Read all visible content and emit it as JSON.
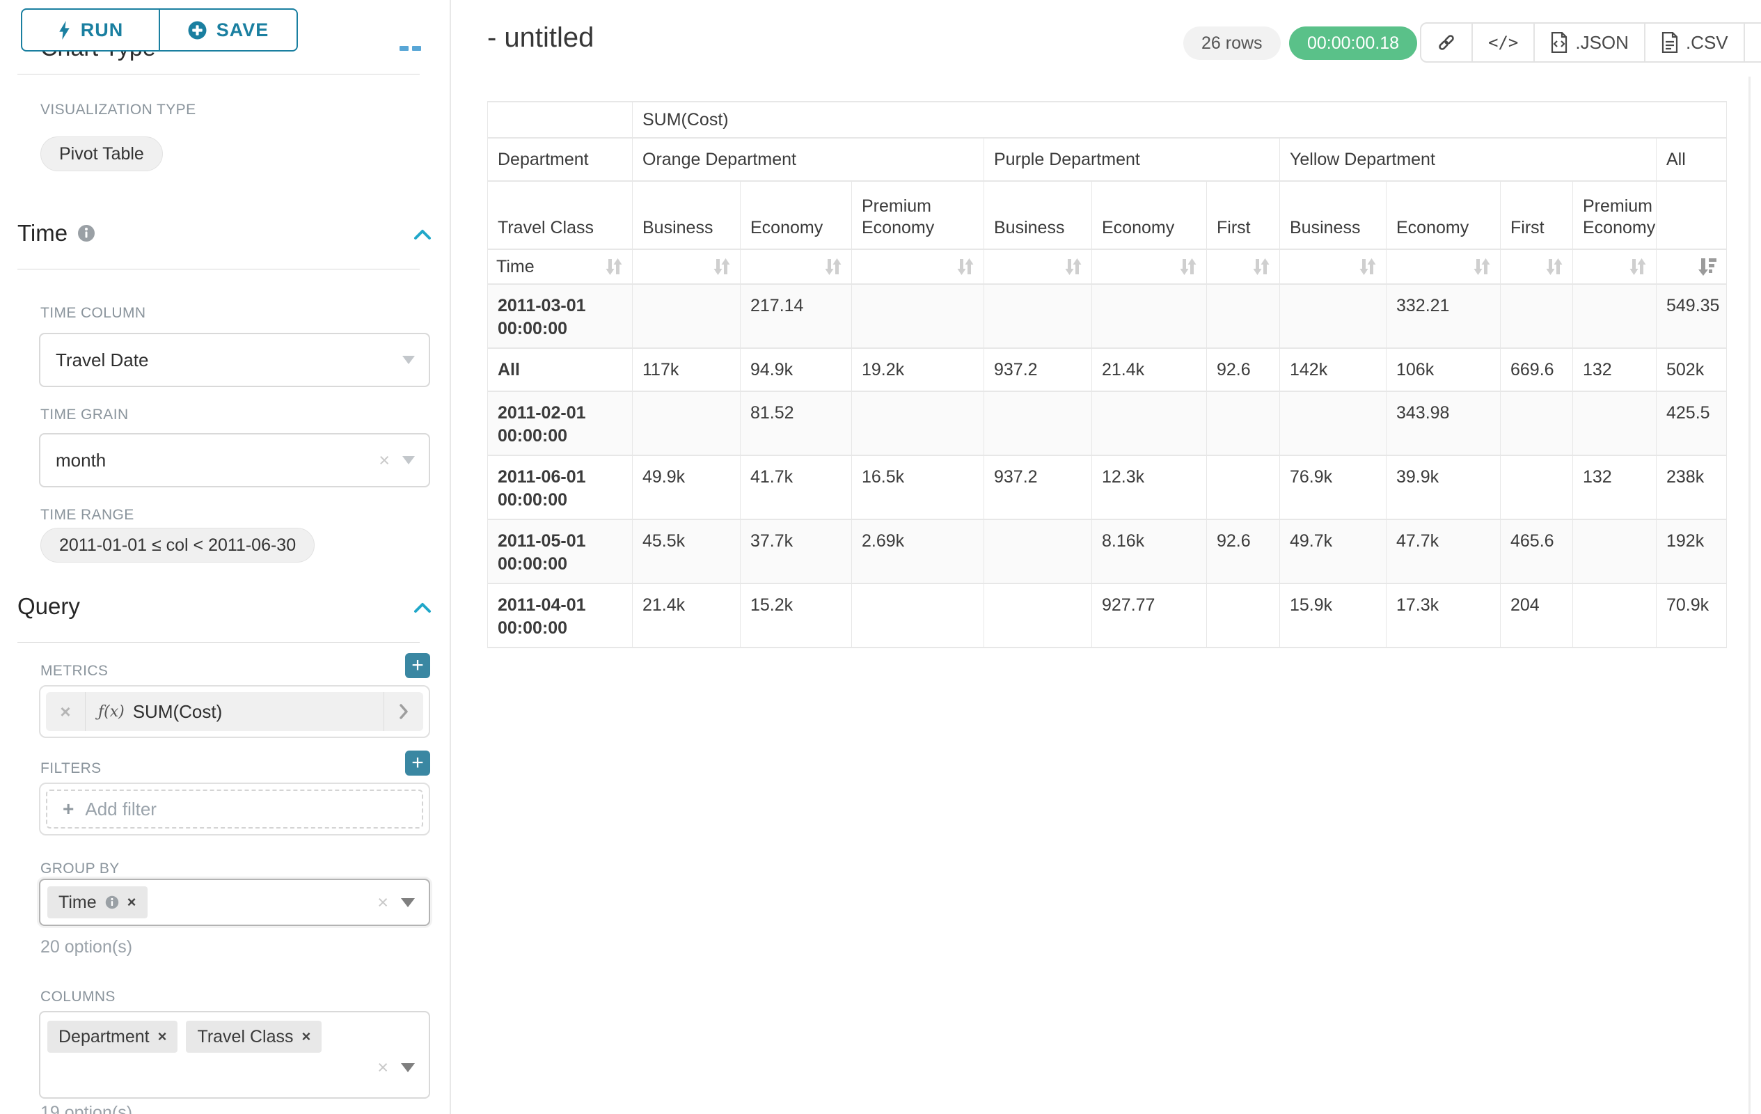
{
  "colors": {
    "accent_teal": "#1a7fa0",
    "collapse_chevron_teal": "#20a7c9",
    "add_button_teal": "#3a87a2",
    "duration_badge_green": "#5ac189"
  },
  "glyphs": {
    "close": "×",
    "plus": "+",
    "code": "</>"
  },
  "sidebar": {
    "run_button": "RUN",
    "save_button": "SAVE",
    "chart_type_heading": "Chart Type",
    "viz_label": "VISUALIZATION TYPE",
    "viz_value": "Pivot Table",
    "time": {
      "title": "Time",
      "column_label": "TIME COLUMN",
      "column_value": "Travel Date",
      "grain_label": "TIME GRAIN",
      "grain_value": "month",
      "range_label": "TIME RANGE",
      "range_value": "2011-01-01 ≤ col < 2011-06-30"
    },
    "query": {
      "title": "Query",
      "metrics_label": "METRICS",
      "metric_fn": "ƒ(x)",
      "metric_name": "SUM(Cost)",
      "filters_label": "FILTERS",
      "add_filter": "Add filter",
      "group_by_label": "GROUP BY",
      "group_by_tag": "Time",
      "group_by_hint": "20 option(s)",
      "columns_label": "COLUMNS",
      "columns_tags": [
        "Department",
        "Travel Class"
      ],
      "columns_hint": "19 option(s)"
    }
  },
  "header": {
    "title": "- untitled",
    "rows_badge": "26 rows",
    "duration_badge": "00:00:00.18",
    "json_label": ".JSON",
    "csv_label": ".CSV"
  },
  "table": {
    "metric_header": "SUM(Cost)",
    "col_dims": [
      "Department",
      "Travel Class"
    ],
    "row_dim": "Time",
    "groups": [
      {
        "label": "Orange Department",
        "children": [
          "Business",
          "Economy",
          "Premium Economy"
        ]
      },
      {
        "label": "Purple Department",
        "children": [
          "Business",
          "Economy",
          "First"
        ]
      },
      {
        "label": "Yellow Department",
        "children": [
          "Business",
          "Economy",
          "First",
          "Premium Economy"
        ]
      },
      {
        "label": "All",
        "children": [
          ""
        ]
      }
    ],
    "rows": [
      {
        "header": "2011-03-01 00:00:00",
        "values": [
          "",
          "217.14",
          "",
          "",
          "",
          "",
          "",
          "332.21",
          "",
          "",
          "549.35"
        ]
      },
      {
        "header": "All",
        "values": [
          "117k",
          "94.9k",
          "19.2k",
          "937.2",
          "21.4k",
          "92.6",
          "142k",
          "106k",
          "669.6",
          "132",
          "502k"
        ]
      },
      {
        "header": "2011-02-01 00:00:00",
        "values": [
          "",
          "81.52",
          "",
          "",
          "",
          "",
          "",
          "343.98",
          "",
          "",
          "425.5"
        ]
      },
      {
        "header": "2011-06-01 00:00:00",
        "values": [
          "49.9k",
          "41.7k",
          "16.5k",
          "937.2",
          "12.3k",
          "",
          "76.9k",
          "39.9k",
          "",
          "132",
          "238k"
        ]
      },
      {
        "header": "2011-05-01 00:00:00",
        "values": [
          "45.5k",
          "37.7k",
          "2.69k",
          "",
          "8.16k",
          "92.6",
          "49.7k",
          "47.7k",
          "465.6",
          "",
          "192k"
        ]
      },
      {
        "header": "2011-04-01 00:00:00",
        "values": [
          "21.4k",
          "15.2k",
          "",
          "",
          "927.77",
          "",
          "15.9k",
          "17.3k",
          "204",
          "",
          "70.9k"
        ]
      }
    ]
  }
}
